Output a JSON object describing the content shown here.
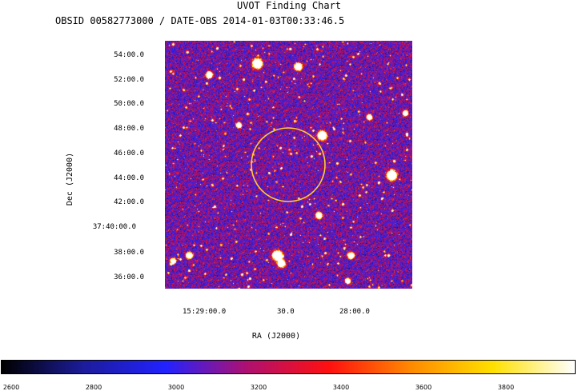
{
  "header": {
    "title": "UVOT Finding Chart",
    "subtitle": "OBSID 00582773000 / DATE-OBS 2014-01-03T00:33:46.5"
  },
  "axes": {
    "xlabel": "RA (J2000)",
    "ylabel": "Dec (J2000)",
    "dec_ticks": [
      "54:00.0",
      "52:00.0",
      "50:00.0",
      "48:00.0",
      "46:00.0",
      "44:00.0",
      "42:00.0",
      "37:40:00.0",
      "38:00.0",
      "36:00.0"
    ],
    "ra_ticks": [
      "15:29:00.0",
      "30.0",
      "28:00.0"
    ]
  },
  "colorbar": {
    "ticks": [
      "2600",
      "2800",
      "3000",
      "3200",
      "3400",
      "3600",
      "3800"
    ],
    "colors": [
      "#000000",
      "#1c1c9c",
      "#2222ff",
      "#b01070",
      "#ff1010",
      "#ff8a00",
      "#ffe000",
      "#ffffff"
    ]
  },
  "overlay": {
    "circle_color": "#ffcc33"
  }
}
